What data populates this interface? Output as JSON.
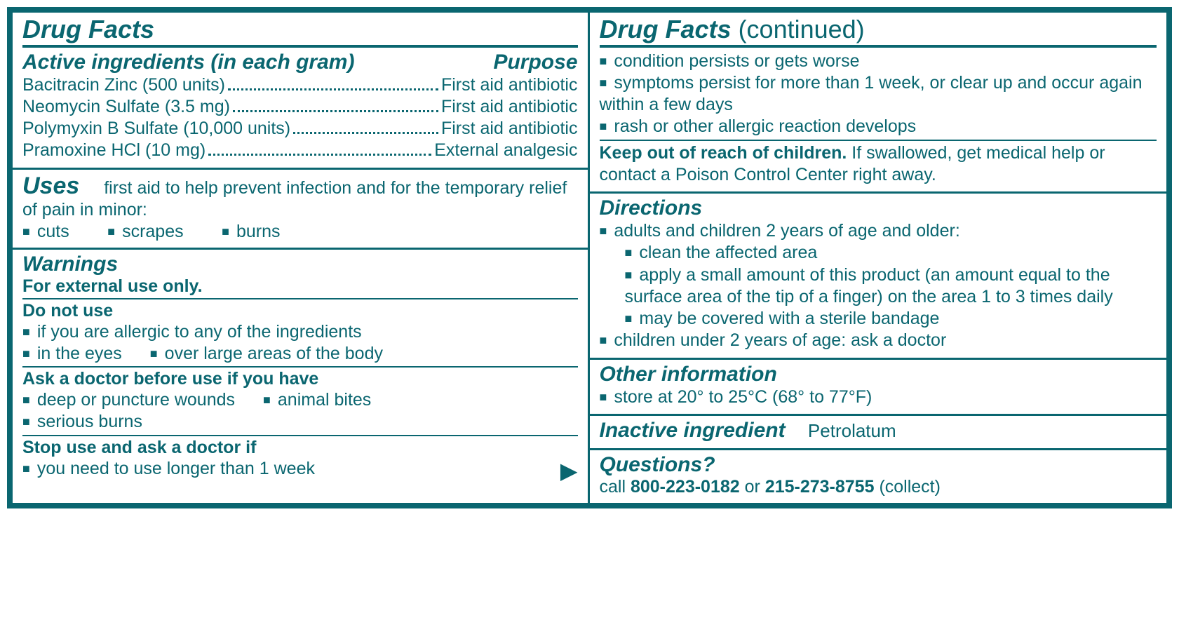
{
  "colors": {
    "primary": "#0a6670",
    "bg": "#ffffff"
  },
  "left": {
    "title": "Drug Facts",
    "active": {
      "heading": "Active ingredients (in each gram)",
      "purpose_heading": "Purpose",
      "rows": [
        {
          "name": "Bacitracin Zinc (500 units)",
          "purpose": "First aid antibiotic"
        },
        {
          "name": "Neomycin Sulfate (3.5 mg)",
          "purpose": "First aid antibiotic"
        },
        {
          "name": "Polymyxin B Sulfate (10,000 units)",
          "purpose": "First aid antibiotic"
        },
        {
          "name": "Pramoxine HCl (10 mg)",
          "purpose": "External analgesic"
        }
      ]
    },
    "uses": {
      "heading": "Uses",
      "lead": "first aid to help prevent infection and for the temporary relief of pain in minor:",
      "items": [
        "cuts",
        "scrapes",
        "burns"
      ]
    },
    "warnings": {
      "heading": "Warnings",
      "external": "For external use only.",
      "do_not_use": {
        "heading": "Do not use",
        "items": [
          "if you are allergic to any of the ingredients",
          "in the eyes",
          "over large areas of the body"
        ]
      },
      "ask_doctor": {
        "heading": "Ask a doctor before use if you have",
        "items": [
          "deep or puncture wounds",
          "animal bites",
          "serious burns"
        ]
      },
      "stop_use": {
        "heading": "Stop use and ask a doctor if",
        "item": "you need to use longer than 1 week"
      }
    }
  },
  "right": {
    "title": "Drug Facts",
    "title_cont": "(continued)",
    "cont_bullets": [
      "condition persists or gets worse",
      "symptoms persist for more than 1 week, or clear up and occur again within a few days",
      "rash or other allergic reaction develops"
    ],
    "keep_out_bold": "Keep out of reach of children.",
    "keep_out_rest": " If swallowed, get medical help or contact a Poison Control Center right away.",
    "directions": {
      "heading": "Directions",
      "b1": "adults and children 2 years of age and older:",
      "subs": [
        "clean the affected area",
        "apply a small amount of this product (an amount equal to the surface area of the tip of a finger) on the area 1 to 3 times daily",
        "may be covered with a sterile bandage"
      ],
      "b2": "children under 2 years of age: ask a doctor"
    },
    "other_info": {
      "heading": "Other information",
      "item": "store at 20° to 25°C (68° to 77°F)"
    },
    "inactive": {
      "heading": "Inactive ingredient",
      "value": "Petrolatum"
    },
    "questions": {
      "heading": "Questions?",
      "pre": "call ",
      "phone1": "800-223-0182",
      "mid": " or ",
      "phone2": "215-273-8755",
      "post": " (collect)"
    }
  }
}
